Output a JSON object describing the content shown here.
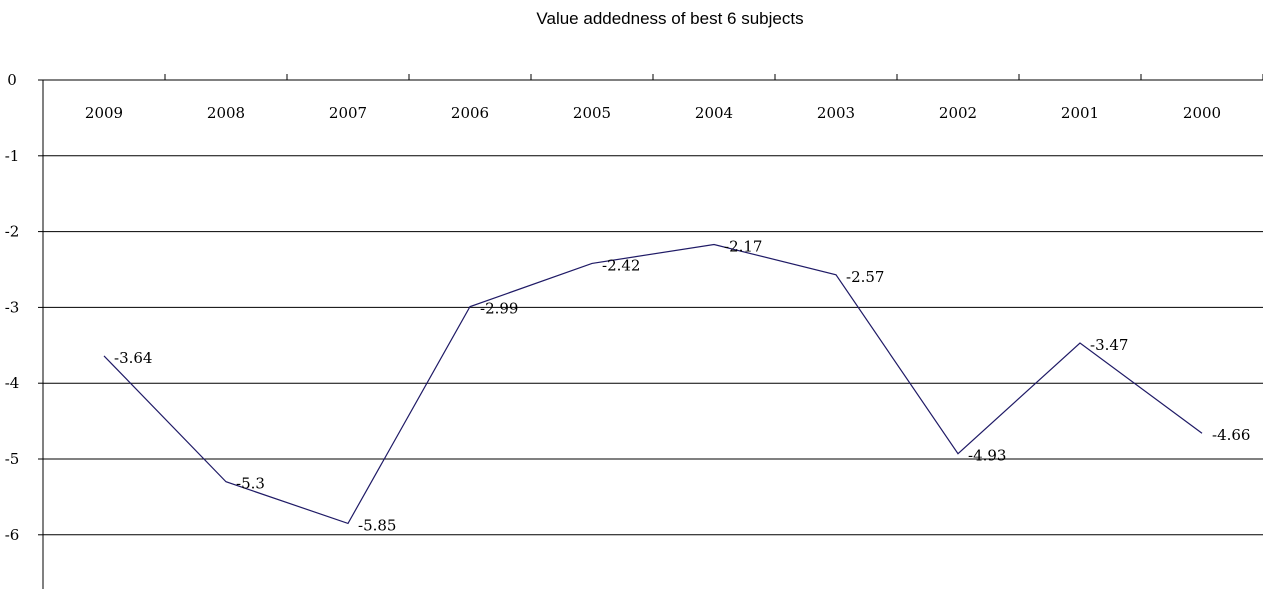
{
  "chart_data": {
    "type": "line",
    "title": "Value addedness of best 6 subjects",
    "xlabel": "",
    "ylabel": "",
    "categories": [
      "2009",
      "2008",
      "2007",
      "2006",
      "2005",
      "2004",
      "2003",
      "2002",
      "2001",
      "2000"
    ],
    "series": [
      {
        "values": [
          -3.64,
          -5.3,
          -5.85,
          -2.99,
          -2.42,
          -2.17,
          -2.57,
          -4.93,
          -3.47,
          -4.66
        ],
        "labels": [
          "-3.64",
          "-5.3",
          "-5.85",
          "-2.99",
          "-2.42",
          "-2.17",
          "-2.57",
          "-4.93",
          "-3.47",
          "-4.66"
        ],
        "color": "#1f1a66"
      }
    ],
    "yticks": [
      "0",
      "-1",
      "-2",
      "-3",
      "-4",
      "-5",
      "-6"
    ],
    "ylim": [
      -7,
      0
    ],
    "grid": true,
    "x_axis_position": "top"
  }
}
